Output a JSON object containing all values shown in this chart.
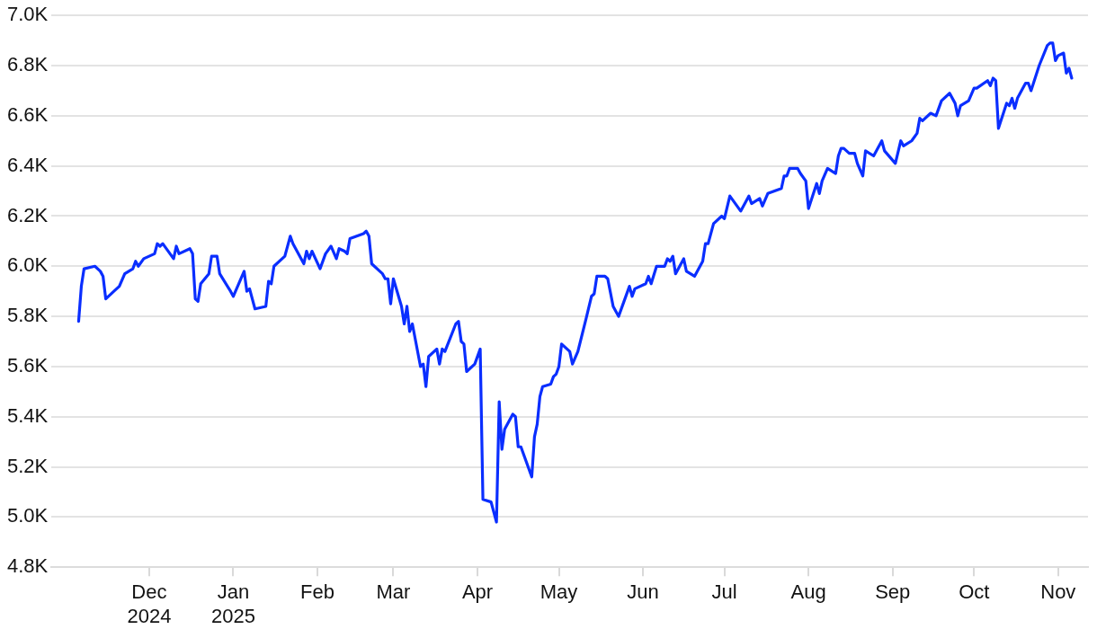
{
  "chart_data": {
    "type": "line",
    "x": [
      "2024-11-05",
      "2024-11-06",
      "2024-11-07",
      "2024-11-11",
      "2024-11-13",
      "2024-11-14",
      "2024-11-15",
      "2024-11-18",
      "2024-11-20",
      "2024-11-22",
      "2024-11-25",
      "2024-11-26",
      "2024-11-27",
      "2024-11-29",
      "2024-12-03",
      "2024-12-04",
      "2024-12-05",
      "2024-12-06",
      "2024-12-10",
      "2024-12-11",
      "2024-12-12",
      "2024-12-16",
      "2024-12-17",
      "2024-12-18",
      "2024-12-19",
      "2024-12-20",
      "2024-12-23",
      "2024-12-24",
      "2024-12-26",
      "2024-12-27",
      "2024-12-31",
      "2025-01-01",
      "2025-01-03",
      "2025-01-05",
      "2025-01-06",
      "2025-01-07",
      "2025-01-09",
      "2025-01-13",
      "2025-01-14",
      "2025-01-15",
      "2025-01-16",
      "2025-01-20",
      "2025-01-22",
      "2025-01-23",
      "2025-01-27",
      "2025-01-28",
      "2025-01-29",
      "2025-01-30",
      "2025-02-02",
      "2025-02-04",
      "2025-02-06",
      "2025-02-08",
      "2025-02-09",
      "2025-02-11",
      "2025-02-12",
      "2025-02-13",
      "2025-02-18",
      "2025-02-19",
      "2025-02-20",
      "2025-02-21",
      "2025-02-24",
      "2025-02-25",
      "2025-02-26",
      "2025-02-27",
      "2025-02-28",
      "2025-03-01",
      "2025-03-04",
      "2025-03-05",
      "2025-03-06",
      "2025-03-07",
      "2025-03-08",
      "2025-03-11",
      "2025-03-12",
      "2025-03-13",
      "2025-03-14",
      "2025-03-17",
      "2025-03-18",
      "2025-03-19",
      "2025-03-20",
      "2025-03-24",
      "2025-03-25",
      "2025-03-26",
      "2025-03-27",
      "2025-03-28",
      "2025-03-31",
      "2025-04-02",
      "2025-04-03",
      "2025-04-06",
      "2025-04-08",
      "2025-04-09",
      "2025-04-10",
      "2025-04-11",
      "2025-04-14",
      "2025-04-15",
      "2025-04-16",
      "2025-04-17",
      "2025-04-21",
      "2025-04-22",
      "2025-04-23",
      "2025-04-24",
      "2025-04-25",
      "2025-04-28",
      "2025-04-29",
      "2025-04-30",
      "2025-05-01",
      "2025-05-02",
      "2025-05-05",
      "2025-05-06",
      "2025-05-08",
      "2025-05-11",
      "2025-05-13",
      "2025-05-14",
      "2025-05-15",
      "2025-05-18",
      "2025-05-19",
      "2025-05-21",
      "2025-05-23",
      "2025-05-27",
      "2025-05-28",
      "2025-05-29",
      "2025-06-02",
      "2025-06-03",
      "2025-06-04",
      "2025-06-06",
      "2025-06-09",
      "2025-06-10",
      "2025-06-11",
      "2025-06-12",
      "2025-06-13",
      "2025-06-16",
      "2025-06-17",
      "2025-06-20",
      "2025-06-23",
      "2025-06-24",
      "2025-06-25",
      "2025-06-27",
      "2025-06-30",
      "2025-07-01",
      "2025-07-03",
      "2025-07-07",
      "2025-07-10",
      "2025-07-11",
      "2025-07-14",
      "2025-07-15",
      "2025-07-17",
      "2025-07-22",
      "2025-07-23",
      "2025-07-24",
      "2025-07-25",
      "2025-07-28",
      "2025-07-29",
      "2025-07-31",
      "2025-08-01",
      "2025-08-04",
      "2025-08-05",
      "2025-08-06",
      "2025-08-08",
      "2025-08-11",
      "2025-08-12",
      "2025-08-13",
      "2025-08-14",
      "2025-08-16",
      "2025-08-18",
      "2025-08-19",
      "2025-08-21",
      "2025-08-22",
      "2025-08-25",
      "2025-08-28",
      "2025-08-29",
      "2025-09-02",
      "2025-09-04",
      "2025-09-05",
      "2025-09-08",
      "2025-09-10",
      "2025-09-11",
      "2025-09-12",
      "2025-09-15",
      "2025-09-17",
      "2025-09-19",
      "2025-09-22",
      "2025-09-24",
      "2025-09-25",
      "2025-09-26",
      "2025-09-29",
      "2025-10-01",
      "2025-10-02",
      "2025-10-06",
      "2025-10-07",
      "2025-10-08",
      "2025-10-09",
      "2025-10-10",
      "2025-10-13",
      "2025-10-14",
      "2025-10-15",
      "2025-10-16",
      "2025-10-17",
      "2025-10-20",
      "2025-10-21",
      "2025-10-22",
      "2025-10-25",
      "2025-10-28",
      "2025-10-29",
      "2025-10-30",
      "2025-10-31",
      "2025-11-01",
      "2025-11-03",
      "2025-11-04",
      "2025-11-05",
      "2025-11-06"
    ],
    "series": [
      {
        "color": "#0a2eff",
        "values": [
          5780,
          5920,
          5990,
          6000,
          5980,
          5960,
          5870,
          5900,
          5920,
          5970,
          5990,
          6020,
          6000,
          6030,
          6050,
          6090,
          6080,
          6090,
          6030,
          6080,
          6050,
          6070,
          6050,
          5870,
          5860,
          5930,
          5970,
          6040,
          6040,
          5970,
          5900,
          5880,
          5930,
          5980,
          5900,
          5910,
          5830,
          5840,
          5940,
          5930,
          6000,
          6040,
          6120,
          6090,
          6010,
          6060,
          6030,
          6060,
          5990,
          6050,
          6080,
          6030,
          6070,
          6060,
          6050,
          6110,
          6130,
          6140,
          6120,
          6010,
          5980,
          5970,
          5950,
          5950,
          5850,
          5950,
          5840,
          5770,
          5840,
          5740,
          5770,
          5600,
          5610,
          5520,
          5640,
          5670,
          5610,
          5670,
          5660,
          5770,
          5780,
          5700,
          5690,
          5580,
          5610,
          5670,
          5070,
          5060,
          4980,
          5460,
          5270,
          5350,
          5410,
          5400,
          5280,
          5280,
          5160,
          5320,
          5370,
          5480,
          5520,
          5530,
          5560,
          5570,
          5600,
          5690,
          5660,
          5610,
          5660,
          5790,
          5880,
          5890,
          5960,
          5960,
          5950,
          5840,
          5800,
          5920,
          5880,
          5910,
          5930,
          5960,
          5930,
          6000,
          6000,
          6030,
          6020,
          6040,
          5970,
          6030,
          5980,
          5960,
          6020,
          6090,
          6090,
          6170,
          6200,
          6190,
          6280,
          6220,
          6280,
          6250,
          6270,
          6240,
          6290,
          6310,
          6360,
          6360,
          6390,
          6390,
          6370,
          6340,
          6230,
          6330,
          6290,
          6340,
          6390,
          6370,
          6440,
          6470,
          6470,
          6450,
          6450,
          6410,
          6360,
          6460,
          6440,
          6500,
          6460,
          6410,
          6500,
          6480,
          6500,
          6530,
          6590,
          6580,
          6610,
          6600,
          6660,
          6690,
          6650,
          6600,
          6640,
          6660,
          6710,
          6710,
          6740,
          6720,
          6750,
          6740,
          6550,
          6650,
          6640,
          6670,
          6630,
          6670,
          6730,
          6730,
          6700,
          6800,
          6880,
          6890,
          6890,
          6820,
          6840,
          6850,
          6770,
          6790,
          6750
        ]
      }
    ],
    "xlim": [
      "2024-10-26",
      "2025-11-12"
    ],
    "xticks": [
      {
        "value": "2024-12-01",
        "label": "Dec\n2024"
      },
      {
        "value": "2025-01-01",
        "label": "Jan\n2025"
      },
      {
        "value": "2025-02-01",
        "label": "Feb"
      },
      {
        "value": "2025-03-01",
        "label": "Mar"
      },
      {
        "value": "2025-04-01",
        "label": "Apr"
      },
      {
        "value": "2025-05-01",
        "label": "May"
      },
      {
        "value": "2025-06-01",
        "label": "Jun"
      },
      {
        "value": "2025-07-01",
        "label": "Jul"
      },
      {
        "value": "2025-08-01",
        "label": "Aug"
      },
      {
        "value": "2025-09-01",
        "label": "Sep"
      },
      {
        "value": "2025-10-01",
        "label": "Oct"
      },
      {
        "value": "2025-11-01",
        "label": "Nov"
      }
    ],
    "ylim": [
      4800,
      7000
    ],
    "yticks": [
      {
        "value": 4800,
        "label": "4.8K"
      },
      {
        "value": 5000,
        "label": "5.0K"
      },
      {
        "value": 5200,
        "label": "5.2K"
      },
      {
        "value": 5400,
        "label": "5.4K"
      },
      {
        "value": 5600,
        "label": "5.6K"
      },
      {
        "value": 5800,
        "label": "5.8K"
      },
      {
        "value": 6000,
        "label": "6.0K"
      },
      {
        "value": 6200,
        "label": "6.2K"
      },
      {
        "value": 6400,
        "label": "6.4K"
      },
      {
        "value": 6600,
        "label": "6.6K"
      },
      {
        "value": 6800,
        "label": "6.8K"
      },
      {
        "value": 7000,
        "label": "7.0K"
      }
    ],
    "grid": "y",
    "line_style": "solid"
  }
}
